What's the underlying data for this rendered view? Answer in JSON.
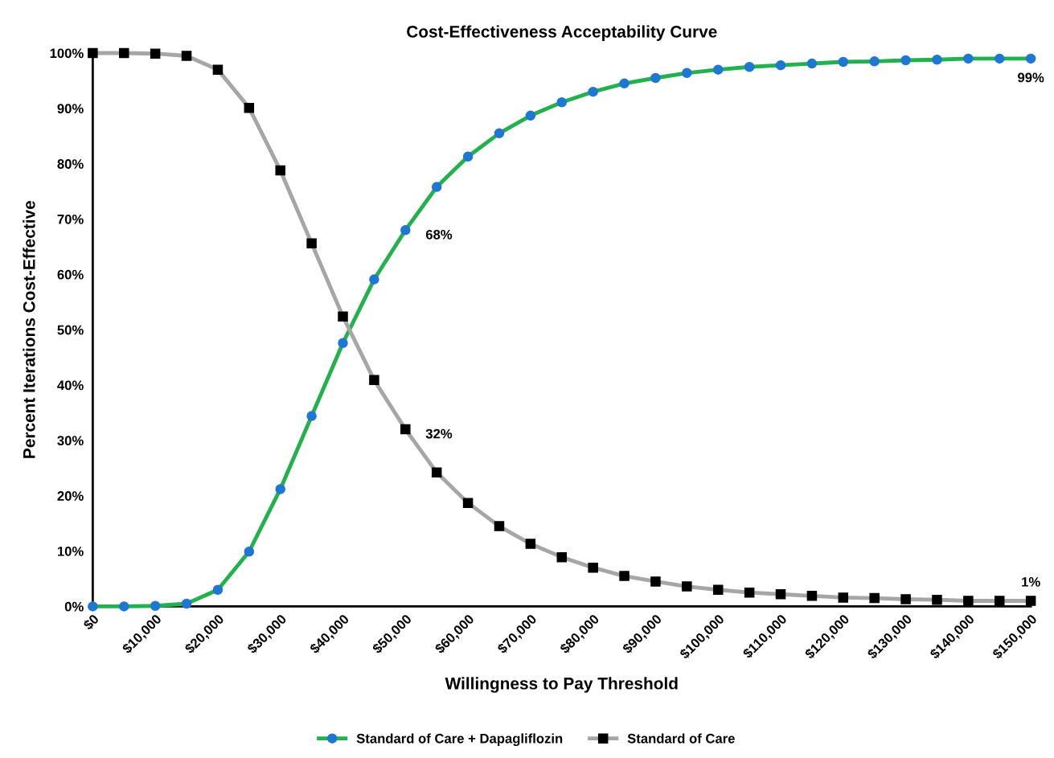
{
  "chart_data": {
    "type": "line",
    "title": "Cost-Effectiveness Acceptability Curve",
    "xlabel": "Willingness to Pay Threshold",
    "ylabel": "Percent Iterations Cost-Effective",
    "x": [
      0,
      5000,
      10000,
      15000,
      20000,
      25000,
      30000,
      35000,
      40000,
      45000,
      50000,
      55000,
      60000,
      65000,
      70000,
      75000,
      80000,
      85000,
      90000,
      95000,
      100000,
      105000,
      110000,
      115000,
      120000,
      125000,
      130000,
      135000,
      140000,
      145000,
      150000
    ],
    "series": [
      {
        "name": "Standard of Care + Dapagliflozin",
        "color": "#22b14c",
        "marker": "circle",
        "values": [
          0,
          0,
          0.1,
          0.5,
          3.0,
          9.9,
          21.2,
          34.4,
          47.6,
          59.1,
          68,
          75.8,
          81.3,
          85.5,
          88.7,
          91.1,
          93.0,
          94.5,
          95.5,
          96.4,
          97.0,
          97.5,
          97.8,
          98.1,
          98.4,
          98.5,
          98.7,
          98.8,
          99.0,
          99.0,
          99
        ],
        "value_labels": [
          null,
          null,
          null,
          null,
          null,
          null,
          null,
          null,
          null,
          null,
          "68%",
          null,
          null,
          null,
          null,
          null,
          null,
          null,
          null,
          null,
          null,
          null,
          null,
          null,
          null,
          null,
          null,
          null,
          null,
          null,
          "99%"
        ]
      },
      {
        "name": "Standard of Care",
        "color": "#a6a6a6",
        "marker": "square",
        "values": [
          100,
          100,
          99.9,
          99.5,
          97.0,
          90.1,
          78.8,
          65.6,
          52.4,
          40.9,
          32,
          24.2,
          18.7,
          14.5,
          11.3,
          8.9,
          7.0,
          5.5,
          4.5,
          3.6,
          3.0,
          2.5,
          2.2,
          1.9,
          1.6,
          1.5,
          1.3,
          1.2,
          1.0,
          1.0,
          1
        ],
        "value_labels": [
          null,
          null,
          null,
          null,
          null,
          null,
          null,
          null,
          null,
          null,
          "32%",
          null,
          null,
          null,
          null,
          null,
          null,
          null,
          null,
          null,
          null,
          null,
          null,
          null,
          null,
          null,
          null,
          null,
          null,
          null,
          "1%"
        ]
      }
    ],
    "xlim": [
      0,
      150000
    ],
    "xticks": [
      {
        "value": 0,
        "label": "$0"
      },
      {
        "value": 10000,
        "label": "$10,000"
      },
      {
        "value": 20000,
        "label": "$20,000"
      },
      {
        "value": 30000,
        "label": "$30,000"
      },
      {
        "value": 40000,
        "label": "$40,000"
      },
      {
        "value": 50000,
        "label": "$50,000"
      },
      {
        "value": 60000,
        "label": "$60,000"
      },
      {
        "value": 70000,
        "label": "$70,000"
      },
      {
        "value": 80000,
        "label": "$80,000"
      },
      {
        "value": 90000,
        "label": "$90,000"
      },
      {
        "value": 100000,
        "label": "$100,000"
      },
      {
        "value": 110000,
        "label": "$110,000"
      },
      {
        "value": 120000,
        "label": "$120,000"
      },
      {
        "value": 130000,
        "label": "$130,000"
      },
      {
        "value": 140000,
        "label": "$140,000"
      },
      {
        "value": 150000,
        "label": "$150,000"
      }
    ],
    "ylim": [
      0,
      100
    ],
    "yticks": [
      {
        "value": 0,
        "label": "0%"
      },
      {
        "value": 10,
        "label": "10%"
      },
      {
        "value": 20,
        "label": "20%"
      },
      {
        "value": 30,
        "label": "30%"
      },
      {
        "value": 40,
        "label": "40%"
      },
      {
        "value": 50,
        "label": "50%"
      },
      {
        "value": 60,
        "label": "60%"
      },
      {
        "value": 70,
        "label": "70%"
      },
      {
        "value": 80,
        "label": "80%"
      },
      {
        "value": 90,
        "label": "90%"
      },
      {
        "value": 100,
        "label": "100%"
      }
    ],
    "grid": false,
    "legend": "bottom",
    "line_style": "solid"
  }
}
